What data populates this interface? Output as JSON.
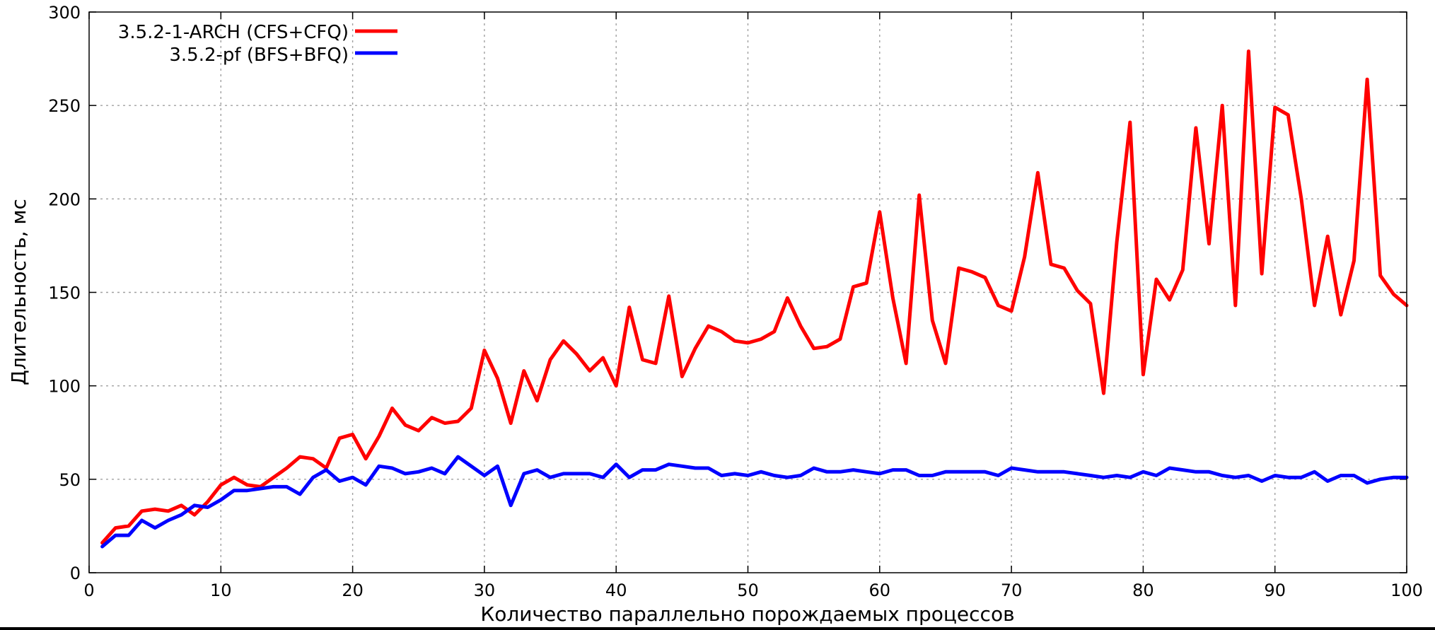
{
  "chart_data": {
    "type": "line",
    "title": "",
    "xlabel": "Количество параллельно порождаемых процессов",
    "ylabel": "Длительность, мс",
    "xlim": [
      0,
      100
    ],
    "ylim": [
      0,
      300
    ],
    "x_ticks": [
      0,
      10,
      20,
      30,
      40,
      50,
      60,
      70,
      80,
      90,
      100
    ],
    "y_ticks": [
      0,
      50,
      100,
      150,
      200,
      250,
      300
    ],
    "grid": true,
    "legend_position": "top-left",
    "x": [
      1,
      2,
      3,
      4,
      5,
      6,
      7,
      8,
      9,
      10,
      11,
      12,
      13,
      14,
      15,
      16,
      17,
      18,
      19,
      20,
      21,
      22,
      23,
      24,
      25,
      26,
      27,
      28,
      29,
      30,
      31,
      32,
      33,
      34,
      35,
      36,
      37,
      38,
      39,
      40,
      41,
      42,
      43,
      44,
      45,
      46,
      47,
      48,
      49,
      50,
      51,
      52,
      53,
      54,
      55,
      56,
      57,
      58,
      59,
      60,
      61,
      62,
      63,
      64,
      65,
      66,
      67,
      68,
      69,
      70,
      71,
      72,
      73,
      74,
      75,
      76,
      77,
      78,
      79,
      80,
      81,
      82,
      83,
      84,
      85,
      86,
      87,
      88,
      89,
      90,
      91,
      92,
      93,
      94,
      95,
      96,
      97,
      98,
      99,
      100
    ],
    "series": [
      {
        "name": "3.5.2-1-ARCH (CFS+CFQ)",
        "color": "#ff0000",
        "values": [
          16,
          24,
          25,
          33,
          34,
          33,
          36,
          31,
          38,
          47,
          51,
          47,
          46,
          51,
          56,
          62,
          61,
          56,
          72,
          74,
          61,
          73,
          88,
          79,
          76,
          83,
          80,
          81,
          88,
          119,
          104,
          80,
          108,
          92,
          114,
          124,
          117,
          108,
          115,
          100,
          142,
          114,
          112,
          148,
          105,
          120,
          132,
          129,
          124,
          123,
          125,
          129,
          147,
          132,
          120,
          121,
          125,
          153,
          155,
          193,
          147,
          112,
          202,
          135,
          112,
          163,
          161,
          158,
          143,
          140,
          169,
          214,
          165,
          163,
          151,
          144,
          96,
          177,
          241,
          106,
          157,
          146,
          162,
          238,
          176,
          250,
          143,
          279,
          160,
          249,
          245,
          200,
          143,
          180,
          138,
          167,
          264,
          159,
          149,
          143
        ]
      },
      {
        "name": "3.5.2-pf (BFS+BFQ)",
        "color": "#0000ff",
        "values": [
          14,
          20,
          20,
          28,
          24,
          28,
          31,
          36,
          35,
          39,
          44,
          44,
          45,
          46,
          46,
          42,
          51,
          55,
          49,
          51,
          47,
          57,
          56,
          53,
          54,
          56,
          53,
          62,
          57,
          52,
          57,
          36,
          53,
          55,
          51,
          53,
          53,
          53,
          51,
          58,
          51,
          55,
          55,
          58,
          57,
          56,
          56,
          52,
          53,
          52,
          54,
          52,
          51,
          52,
          56,
          54,
          54,
          55,
          54,
          53,
          55,
          55,
          52,
          52,
          54,
          54,
          54,
          54,
          52,
          56,
          55,
          54,
          54,
          54,
          53,
          52,
          51,
          52,
          51,
          54,
          52,
          56,
          55,
          54,
          54,
          52,
          51,
          52,
          49,
          52,
          51,
          51,
          54,
          49,
          52,
          52,
          48,
          50,
          51,
          51
        ]
      }
    ]
  }
}
